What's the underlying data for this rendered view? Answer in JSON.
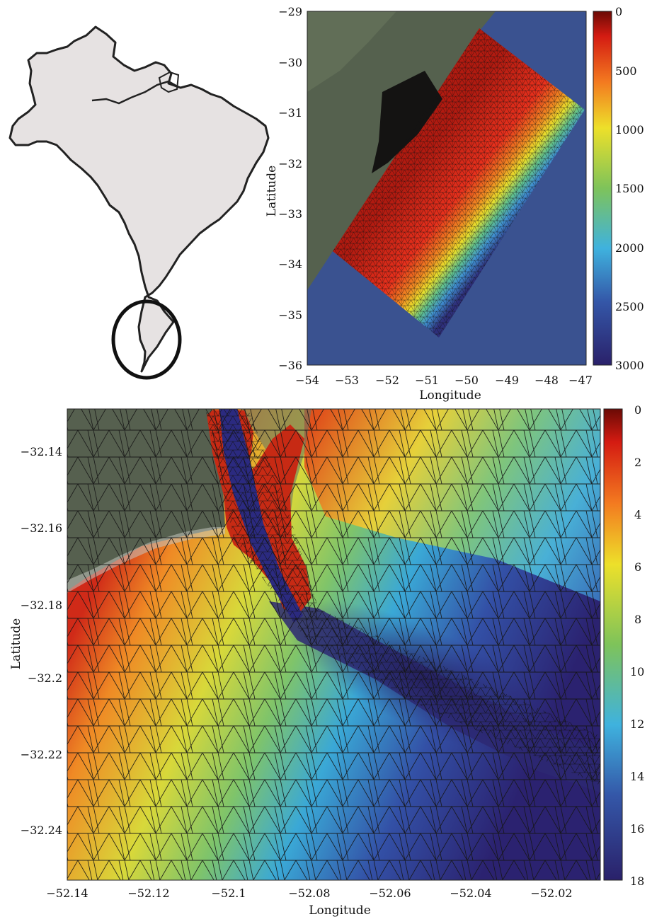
{
  "top_right": {
    "x_label": "Longitude",
    "y_label": "Latitude",
    "x_ticks": [
      "−54",
      "−53",
      "−52",
      "−51",
      "−50",
      "−49",
      "−48",
      "−47"
    ],
    "y_ticks": [
      "−29",
      "−30",
      "−31",
      "−32",
      "−33",
      "−34",
      "−35",
      "−36"
    ],
    "colorbar_ticks": [
      "0",
      "500",
      "1000",
      "1500",
      "2000",
      "2500",
      "3000"
    ]
  },
  "bottom": {
    "x_label": "Longitude",
    "y_label": "Latitude",
    "x_ticks": [
      "−52.14",
      "−52.12",
      "−52.1",
      "−52.08",
      "−52.06",
      "−52.04",
      "−52.02"
    ],
    "y_ticks": [
      "−32.14",
      "−32.16",
      "−32.18",
      "−32.2",
      "−32.22",
      "−32.24"
    ],
    "colorbar_ticks": [
      "0",
      "2",
      "4",
      "6",
      "8",
      "10",
      "12",
      "14",
      "16",
      "18"
    ]
  },
  "colors": {
    "colormap": [
      "#7a0d06",
      "#e8211a",
      "#f27a1f",
      "#eee12b",
      "#8ec755",
      "#46b6d8",
      "#3352a6",
      "#2c256b"
    ],
    "land": "#55604f",
    "ocean": "#3c5593",
    "mesh_line": "#111111"
  }
}
